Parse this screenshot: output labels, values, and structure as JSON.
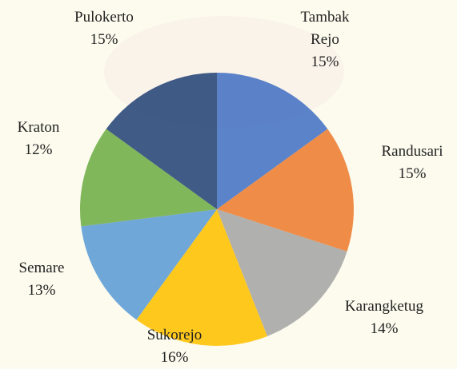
{
  "chart_data": {
    "type": "pie",
    "categories": [
      "Tambak Rejo",
      "Randusari",
      "Karangketug",
      "Sukorejo",
      "Semare",
      "Kraton",
      "Pulokerto"
    ],
    "values": [
      15,
      15,
      14,
      16,
      13,
      12,
      15
    ],
    "value_labels": [
      "15%",
      "15%",
      "14%",
      "16%",
      "13%",
      "12%",
      "15%"
    ],
    "colors": [
      "#4472c4",
      "#ed7d31",
      "#a5a5a5",
      "#ffc000",
      "#5b9bd5",
      "#70ad47",
      "#264478"
    ]
  }
}
